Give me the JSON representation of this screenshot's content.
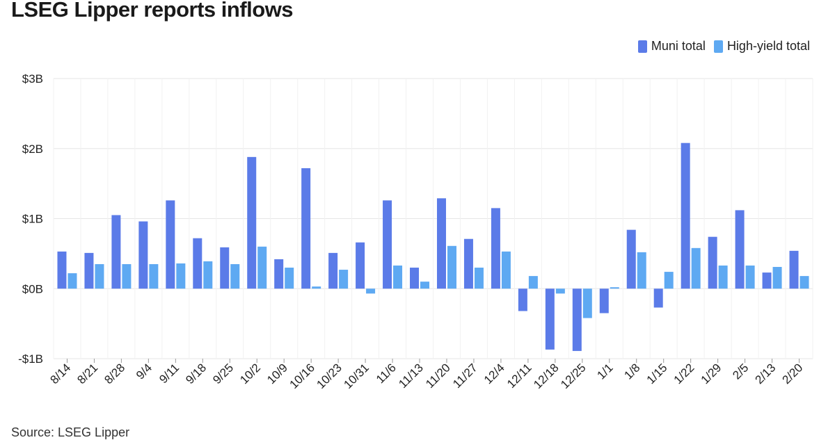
{
  "header": {
    "title": "LSEG Lipper reports inflows"
  },
  "legend": {
    "muni_label": "Muni total",
    "hy_label": "High-yield total"
  },
  "footer": {
    "source": "Source: LSEG Lipper"
  },
  "colors": {
    "muni": "#5b7be8",
    "high_yield": "#5ea9f2",
    "grid": "#e6e6e6"
  },
  "chart_data": {
    "type": "bar",
    "title": "LSEG Lipper reports inflows",
    "xlabel": "",
    "ylabel": "",
    "ylim": [
      -1,
      3
    ],
    "yticks": [
      -1,
      0,
      1,
      2,
      3
    ],
    "ytick_labels": [
      "-$1B",
      "$0B",
      "$1B",
      "$2B",
      "$3B"
    ],
    "legend_position": "top-right",
    "grid": true,
    "categories": [
      "8/14",
      "8/21",
      "8/28",
      "9/4",
      "9/11",
      "9/18",
      "9/25",
      "10/2",
      "10/9",
      "10/16",
      "10/23",
      "10/31",
      "11/6",
      "11/13",
      "11/20",
      "11/27",
      "12/4",
      "12/11",
      "12/18",
      "12/25",
      "1/1",
      "1/8",
      "1/15",
      "1/22",
      "1/29",
      "2/5",
      "2/13",
      "2/20"
    ],
    "series": [
      {
        "name": "Muni total",
        "values": [
          0.53,
          0.51,
          1.05,
          0.96,
          1.26,
          0.72,
          0.59,
          1.88,
          0.42,
          1.72,
          0.51,
          0.66,
          1.26,
          0.3,
          1.29,
          0.71,
          1.15,
          -0.32,
          -0.87,
          -0.89,
          -0.35,
          0.84,
          -0.27,
          2.08,
          0.74,
          1.12,
          0.23,
          0.54
        ]
      },
      {
        "name": "High-yield total",
        "values": [
          0.22,
          0.35,
          0.35,
          0.35,
          0.36,
          0.39,
          0.35,
          0.6,
          0.3,
          0.03,
          0.27,
          -0.07,
          0.33,
          0.1,
          0.61,
          0.3,
          0.53,
          0.18,
          -0.07,
          -0.42,
          0.02,
          0.52,
          0.24,
          0.58,
          0.33,
          0.33,
          0.31,
          0.18
        ]
      }
    ]
  }
}
